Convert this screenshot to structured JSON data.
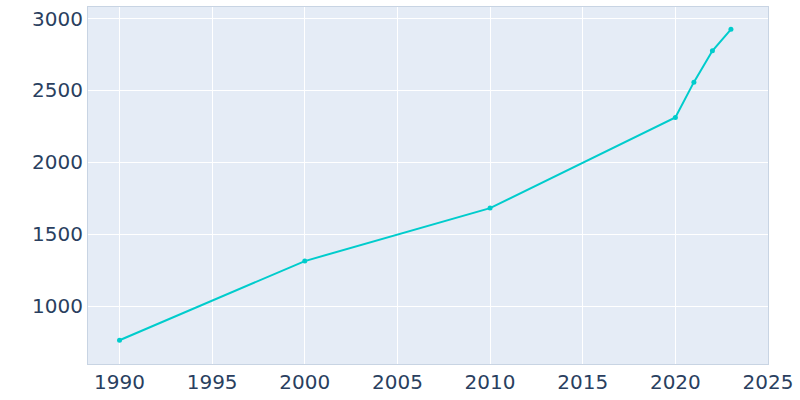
{
  "chart_data": {
    "type": "line",
    "x": [
      1990,
      2000,
      2010,
      2020,
      2021,
      2022,
      2023
    ],
    "values": [
      765,
      1315,
      1683,
      2313,
      2558,
      2776,
      2925
    ],
    "color": "#00cccc",
    "marker": "circle",
    "xlim": [
      1988.3,
      2025
    ],
    "xticks": [
      1990,
      1995,
      2000,
      2005,
      2010,
      2015,
      2020,
      2025
    ],
    "ylim": [
      600,
      3080
    ],
    "yticks": [
      1000,
      1500,
      2000,
      2500,
      3000
    ],
    "grid": true
  }
}
